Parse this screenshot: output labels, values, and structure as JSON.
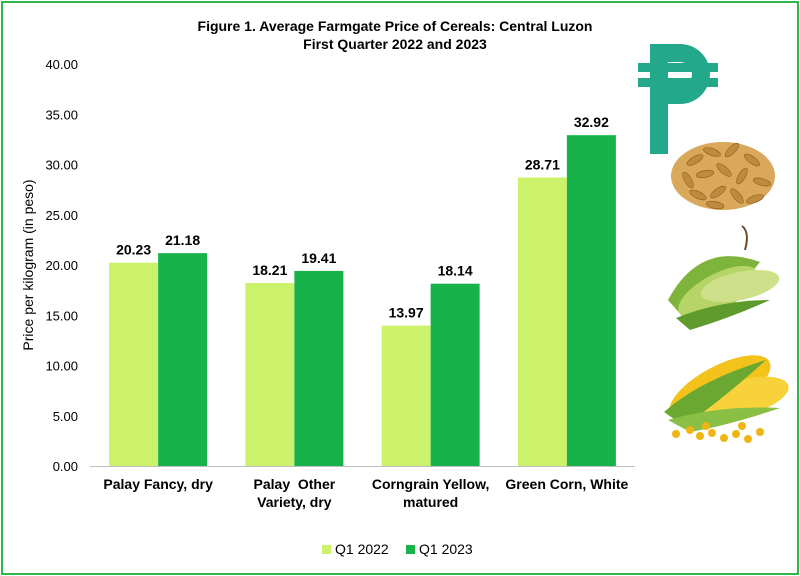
{
  "chart_data": {
    "type": "bar",
    "title": "Figure 1. Average Farmgate Price of Cereals: Central Luzon",
    "subtitle": "First Quarter 2022 and 2023",
    "xlabel": "",
    "ylabel": "Price per kilogram (in peso)",
    "ylim": [
      0,
      40
    ],
    "ytick_step": 5,
    "ytick_labels": [
      "0.00",
      "5.00",
      "10.00",
      "15.00",
      "20.00",
      "25.00",
      "30.00",
      "35.00",
      "40.00"
    ],
    "grid": false,
    "legend_position": "bottom",
    "categories": [
      [
        "Palay Fancy, dry"
      ],
      [
        "Palay  Other",
        "Variety, dry"
      ],
      [
        "Corngrain Yellow,",
        "matured"
      ],
      [
        "Green Corn, White"
      ]
    ],
    "series": [
      {
        "name": "Q1 2022",
        "color": "#ccf26b",
        "values": [
          20.23,
          18.21,
          13.97,
          28.71
        ],
        "labels": [
          "20.23",
          "18.21",
          "13.97",
          "28.71"
        ]
      },
      {
        "name": "Q1 2023",
        "color": "#17b24a",
        "values": [
          21.18,
          19.41,
          18.14,
          32.92
        ],
        "labels": [
          "21.18",
          "19.41",
          "18.14",
          "32.92"
        ]
      }
    ]
  },
  "decor": {
    "peso_sign_color": "#23a88c",
    "icons": [
      "peso-sign-icon",
      "palay-grain-icon",
      "green-corn-icon",
      "yellow-corn-icon"
    ]
  }
}
